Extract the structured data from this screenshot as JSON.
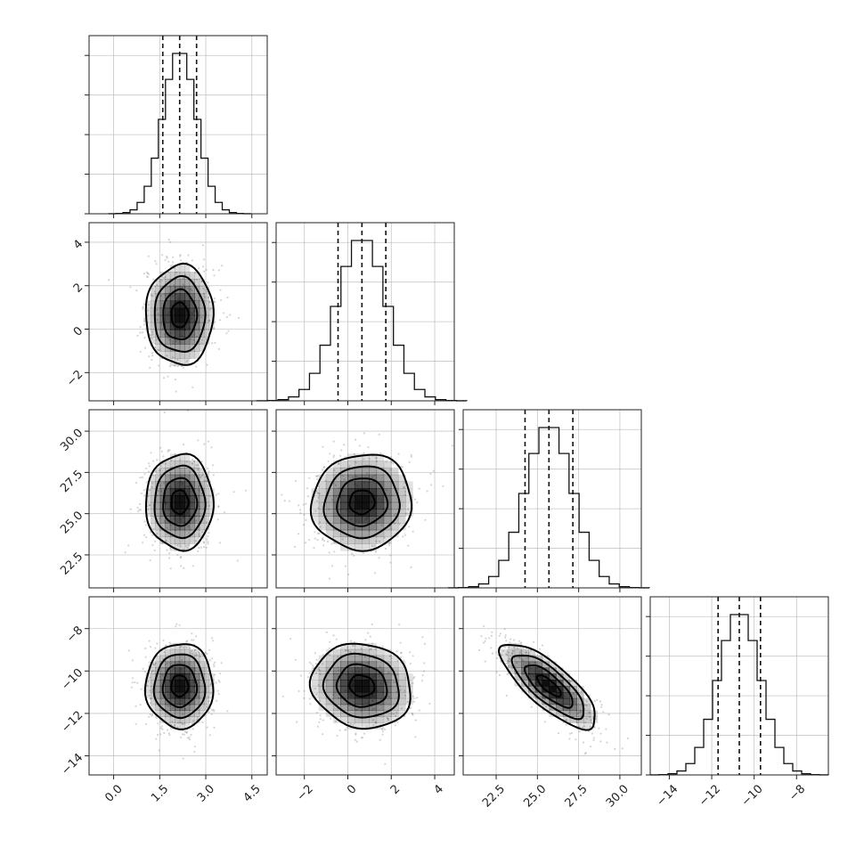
{
  "chart_data": {
    "type": "corner",
    "params": [
      {
        "mean": 2.15,
        "sd": 0.55,
        "range": [
          -0.8,
          5.0
        ],
        "ticks": [
          0.0,
          1.5,
          3.0,
          4.5
        ],
        "tick_labels": [
          "0.0",
          "1.5",
          "3.0",
          "4.5"
        ],
        "quantiles": [
          1.6,
          2.15,
          2.7
        ]
      },
      {
        "mean": 0.65,
        "sd": 1.15,
        "range": [
          -3.3,
          4.9
        ],
        "ticks": [
          -2,
          0,
          2,
          4
        ],
        "tick_labels": [
          "−2",
          "0",
          "2",
          "4"
        ],
        "quantiles": [
          -0.45,
          0.65,
          1.75
        ]
      },
      {
        "mean": 25.7,
        "sd": 1.45,
        "range": [
          20.5,
          31.3
        ],
        "ticks": [
          22.5,
          25.0,
          27.5,
          30.0
        ],
        "tick_labels": [
          "22.5",
          "25.0",
          "27.5",
          "30.0"
        ],
        "quantiles": [
          24.25,
          25.7,
          27.15
        ]
      },
      {
        "mean": -10.7,
        "sd": 1.0,
        "range": [
          -14.9,
          -6.5
        ],
        "ticks": [
          -14,
          -12,
          -10,
          -8
        ],
        "tick_labels": [
          "−14",
          "−12",
          "−10",
          "−8"
        ],
        "quantiles": [
          -11.7,
          -10.7,
          -9.7
        ]
      }
    ],
    "correlations": [
      {
        "i": 1,
        "j": 0,
        "rho": 0.0
      },
      {
        "i": 2,
        "j": 0,
        "rho": 0.0
      },
      {
        "i": 2,
        "j": 1,
        "rho": 0.05
      },
      {
        "i": 3,
        "j": 0,
        "rho": 0.0
      },
      {
        "i": 3,
        "j": 1,
        "rho": -0.1
      },
      {
        "i": 3,
        "j": 2,
        "rho": -0.78
      }
    ],
    "histogram_bins": 20,
    "contour_levels_sigma": [
      0.5,
      1.0,
      1.5,
      2.0
    ],
    "grid": true,
    "colors": {
      "line": "#000000",
      "scatter": "#888888",
      "density": "#000000",
      "grid": "#b0b0b0"
    }
  }
}
